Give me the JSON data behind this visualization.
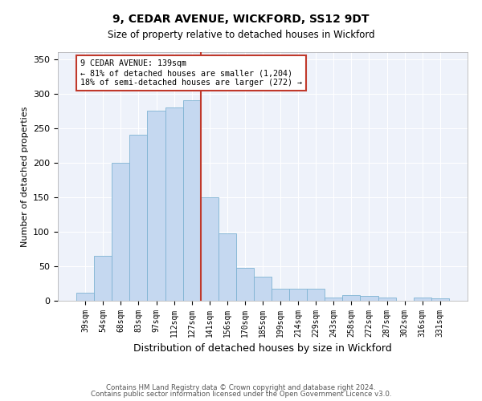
{
  "title1": "9, CEDAR AVENUE, WICKFORD, SS12 9DT",
  "title2": "Size of property relative to detached houses in Wickford",
  "xlabel": "Distribution of detached houses by size in Wickford",
  "ylabel": "Number of detached properties",
  "categories": [
    "39sqm",
    "54sqm",
    "68sqm",
    "83sqm",
    "97sqm",
    "112sqm",
    "127sqm",
    "141sqm",
    "156sqm",
    "170sqm",
    "185sqm",
    "199sqm",
    "214sqm",
    "229sqm",
    "243sqm",
    "258sqm",
    "272sqm",
    "287sqm",
    "302sqm",
    "316sqm",
    "331sqm"
  ],
  "values": [
    12,
    65,
    200,
    240,
    275,
    280,
    290,
    150,
    97,
    48,
    35,
    18,
    18,
    18,
    5,
    8,
    7,
    5,
    0,
    5,
    3
  ],
  "bar_color": "#c5d8f0",
  "bar_edge_color": "#7fb3d3",
  "vline_color": "#c0392b",
  "annotation_title": "9 CEDAR AVENUE: 139sqm",
  "annotation_line1": "← 81% of detached houses are smaller (1,204)",
  "annotation_line2": "18% of semi-detached houses are larger (272) →",
  "annotation_box_color": "#c0392b",
  "ylim": [
    0,
    360
  ],
  "yticks": [
    0,
    50,
    100,
    150,
    200,
    250,
    300,
    350
  ],
  "bg_color": "#eef2fa",
  "footer1": "Contains HM Land Registry data © Crown copyright and database right 2024.",
  "footer2": "Contains public sector information licensed under the Open Government Licence v3.0."
}
